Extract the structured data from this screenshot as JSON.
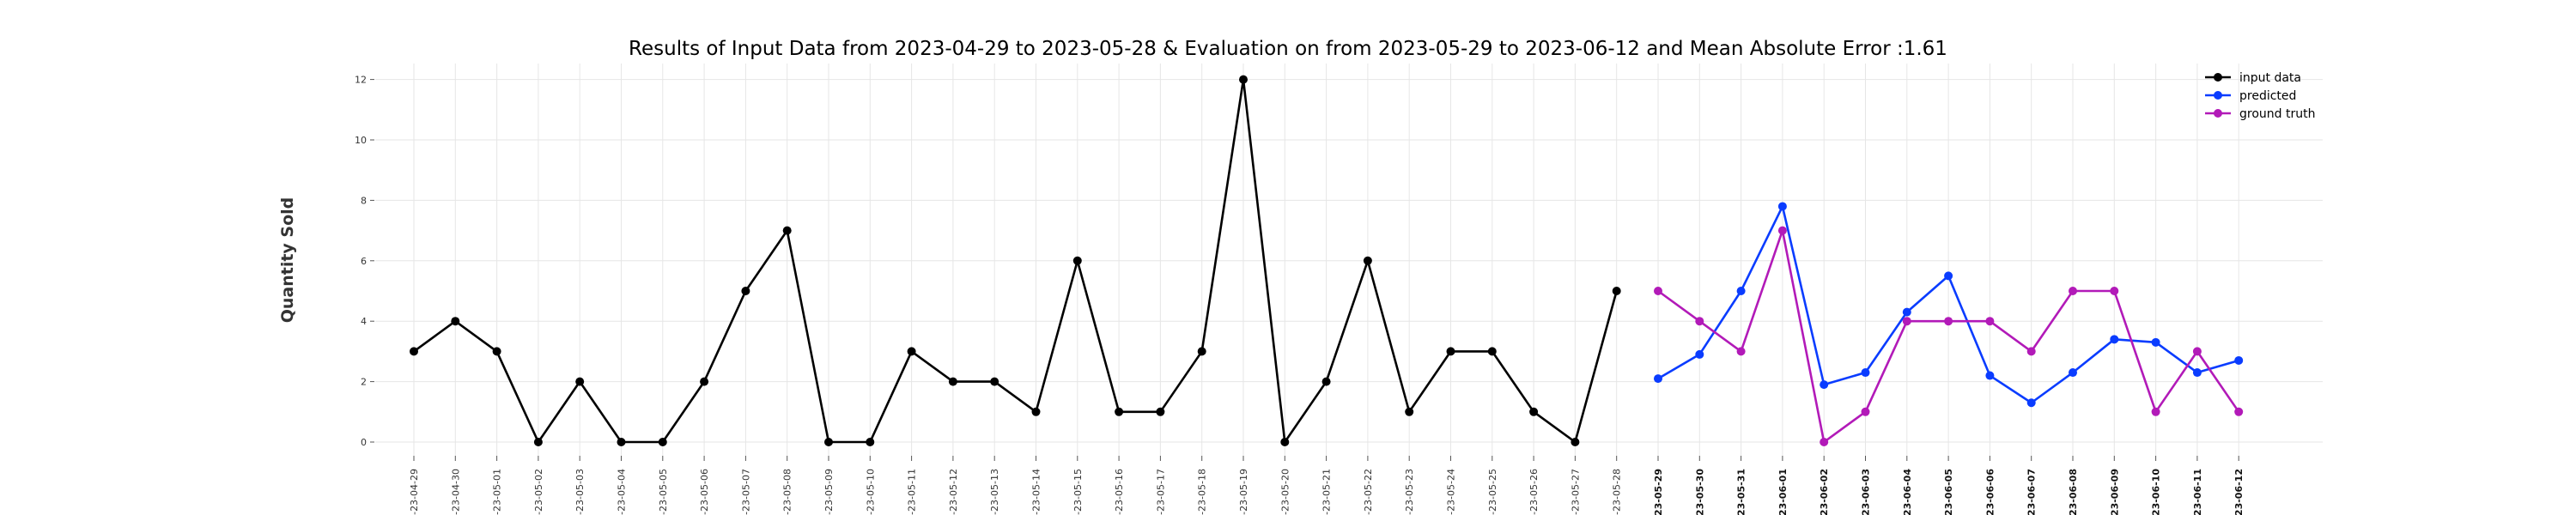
{
  "chart_data": {
    "type": "line",
    "title": "Results of Input Data from 2023-04-29 to 2023-05-28 & Evaluation on from 2023-05-29 to 2023-06-12 and Mean Absolute Error  :1.61",
    "xlabel": "",
    "ylabel": "Quantity Sold",
    "ylim": [
      -0.5,
      12.5
    ],
    "yticks": [
      0,
      2,
      4,
      6,
      8,
      10,
      12
    ],
    "grid": true,
    "legend_position": "top-right",
    "x": [
      "2023-04-29",
      "2023-04-30",
      "2023-05-01",
      "2023-05-02",
      "2023-05-03",
      "2023-05-04",
      "2023-05-05",
      "2023-05-06",
      "2023-05-07",
      "2023-05-08",
      "2023-05-09",
      "2023-05-10",
      "2023-05-11",
      "2023-05-12",
      "2023-05-13",
      "2023-05-14",
      "2023-05-15",
      "2023-05-16",
      "2023-05-17",
      "2023-05-18",
      "2023-05-19",
      "2023-05-20",
      "2023-05-21",
      "2023-05-22",
      "2023-05-23",
      "2023-05-24",
      "2023-05-25",
      "2023-05-26",
      "2023-05-27",
      "2023-05-28",
      "2023-05-29",
      "2023-05-30",
      "2023-05-31",
      "2023-06-01",
      "2023-06-02",
      "2023-06-03",
      "2023-06-04",
      "2023-06-05",
      "2023-06-06",
      "2023-06-07",
      "2023-06-08",
      "2023-06-09",
      "2023-06-10",
      "2023-06-11",
      "2023-06-12"
    ],
    "tick_labels": [
      "-23-04-29",
      "-23-04-30",
      "-23-05-01",
      "-23-05-02",
      "-23-05-03",
      "-23-05-04",
      "-23-05-05",
      "-23-05-06",
      "-23-05-07",
      "-23-05-08",
      "-23-05-09",
      "-23-05-10",
      "-23-05-11",
      "-23-05-12",
      "-23-05-13",
      "-23-05-14",
      "-23-05-15",
      "-23-05-16",
      "-23-05-17",
      "-23-05-18",
      "-23-05-19",
      "-23-05-20",
      "-23-05-21",
      "-23-05-22",
      "-23-05-23",
      "-23-05-24",
      "-23-05-25",
      "-23-05-26",
      "-23-05-27",
      "-23-05-28",
      "-23-05-29",
      "-23-05-30",
      "-23-05-31",
      "-23-06-01",
      "-23-06-02",
      "-23-06-03",
      "-23-06-04",
      "-23-06-05",
      "-23-06-06",
      "-23-06-07",
      "-23-06-08",
      "-23-06-09",
      "-23-06-10",
      "-23-06-11",
      "-23-06-12"
    ],
    "series": [
      {
        "name": "input data",
        "color": "#000000",
        "x": [
          "2023-04-29",
          "2023-04-30",
          "2023-05-01",
          "2023-05-02",
          "2023-05-03",
          "2023-05-04",
          "2023-05-05",
          "2023-05-06",
          "2023-05-07",
          "2023-05-08",
          "2023-05-09",
          "2023-05-10",
          "2023-05-11",
          "2023-05-12",
          "2023-05-13",
          "2023-05-14",
          "2023-05-15",
          "2023-05-16",
          "2023-05-17",
          "2023-05-18",
          "2023-05-19",
          "2023-05-20",
          "2023-05-21",
          "2023-05-22",
          "2023-05-23",
          "2023-05-24",
          "2023-05-25",
          "2023-05-26",
          "2023-05-27",
          "2023-05-28"
        ],
        "values": [
          3,
          4,
          3,
          0,
          2,
          0,
          0,
          2,
          5,
          7,
          0,
          0,
          3,
          2,
          2,
          1,
          6,
          1,
          1,
          3,
          12,
          0,
          2,
          6,
          1,
          3,
          3,
          1,
          0,
          5
        ]
      },
      {
        "name": "predicted",
        "color": "#0a3cff",
        "x": [
          "2023-05-29",
          "2023-05-30",
          "2023-05-31",
          "2023-06-01",
          "2023-06-02",
          "2023-06-03",
          "2023-06-04",
          "2023-06-05",
          "2023-06-06",
          "2023-06-07",
          "2023-06-08",
          "2023-06-09",
          "2023-06-10",
          "2023-06-11",
          "2023-06-12"
        ],
        "values": [
          2.1,
          2.9,
          5.0,
          7.8,
          1.9,
          2.3,
          4.3,
          5.5,
          2.2,
          1.3,
          2.3,
          3.4,
          3.3,
          2.3,
          2.7
        ]
      },
      {
        "name": "ground truth",
        "color": "#b21ab8",
        "x": [
          "2023-05-29",
          "2023-05-30",
          "2023-05-31",
          "2023-06-01",
          "2023-06-02",
          "2023-06-03",
          "2023-06-04",
          "2023-06-05",
          "2023-06-06",
          "2023-06-07",
          "2023-06-08",
          "2023-06-09",
          "2023-06-10",
          "2023-06-11",
          "2023-06-12"
        ],
        "values": [
          5,
          4,
          3,
          7,
          0,
          1,
          4,
          4,
          4,
          3,
          5,
          5,
          1,
          3,
          1
        ]
      }
    ]
  }
}
